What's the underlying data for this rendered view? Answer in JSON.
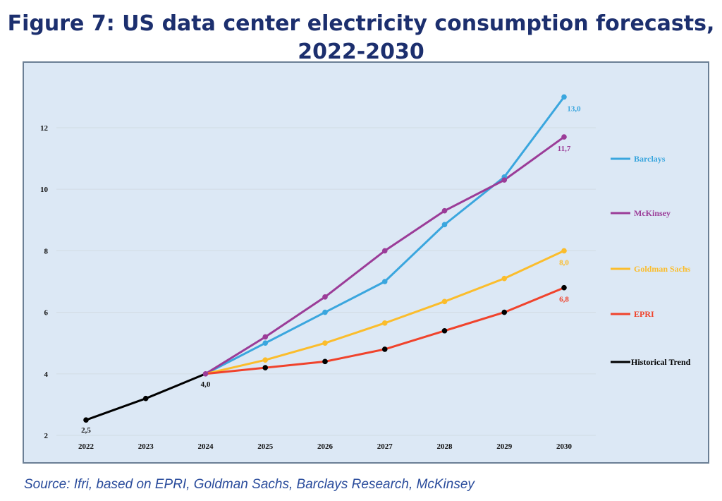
{
  "title_line1": "Figure 7: US data center electricity consumption forecasts,",
  "title_line2": "2022-2030",
  "source": "Source: Ifri, based on EPRI, Goldman Sachs, Barclays Research, McKinsey",
  "chart_data": {
    "type": "line",
    "title": "Figure 7: US data center electricity consumption forecasts, 2022-2030",
    "xlabel": "",
    "ylabel": "",
    "x": [
      2022,
      2023,
      2024,
      2025,
      2026,
      2027,
      2028,
      2029,
      2030
    ],
    "ylim": [
      2,
      13
    ],
    "yticks": [
      2,
      4,
      6,
      8,
      10,
      12
    ],
    "grid": true,
    "legend_position": "right",
    "background": "#dce8f5",
    "series": [
      {
        "name": "Barclays",
        "color": "#3aa6de",
        "marker_color": "#3aa6de",
        "x": [
          2024,
          2025,
          2026,
          2027,
          2028,
          2029,
          2030
        ],
        "values": [
          4.0,
          5.0,
          6.0,
          7.0,
          8.85,
          10.4,
          13.0
        ],
        "end_label": "13,0"
      },
      {
        "name": "McKinsey",
        "color": "#9b3c98",
        "marker_color": "#9b3c98",
        "x": [
          2024,
          2025,
          2026,
          2027,
          2028,
          2029,
          2030
        ],
        "values": [
          4.0,
          5.2,
          6.5,
          8.0,
          9.3,
          10.3,
          11.7
        ],
        "end_label": "11,7"
      },
      {
        "name": "Goldman Sachs",
        "color": "#fbbd2c",
        "marker_color": "#fbbd2c",
        "x": [
          2024,
          2025,
          2026,
          2027,
          2028,
          2029,
          2030
        ],
        "values": [
          4.0,
          4.45,
          5.0,
          5.65,
          6.35,
          7.1,
          8.0
        ],
        "end_label": "8,0"
      },
      {
        "name": "EPRI",
        "color": "#f0432c",
        "marker_color": "#000000",
        "x": [
          2024,
          2025,
          2026,
          2027,
          2028,
          2029,
          2030
        ],
        "values": [
          4.0,
          4.2,
          4.4,
          4.8,
          5.4,
          6.0,
          6.8
        ],
        "end_label": "6,8"
      },
      {
        "name": "Historical Trend",
        "color": "#000000",
        "marker_color": "#000000",
        "x": [
          2022,
          2023,
          2024
        ],
        "values": [
          2.5,
          3.2,
          4.0
        ],
        "point_labels": {
          "2022": "2,5",
          "2024": "4,0"
        }
      }
    ]
  }
}
